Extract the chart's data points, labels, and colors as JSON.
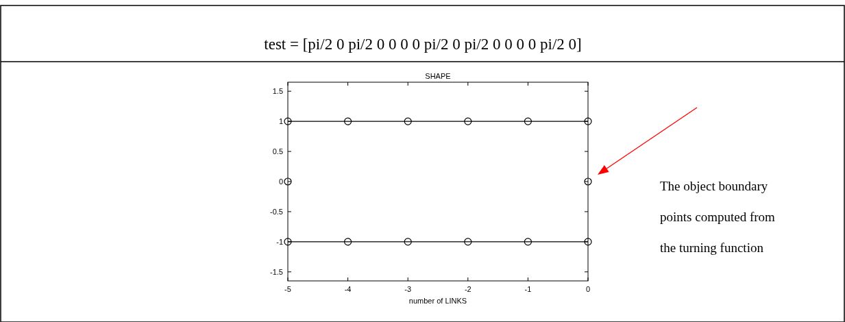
{
  "chart_data": {
    "type": "line",
    "title": "SHAPE",
    "xlabel": "number of LINKS",
    "annotations": [
      "test = [pi/2 0 pi/2 0 0 0 0 pi/2 0 pi/2 0 0 0 0 pi/2 0]",
      "The object boundary",
      "points computed from",
      "the turning function"
    ],
    "xlim": [
      -5,
      0
    ],
    "xticks": [
      -5,
      -4,
      -3,
      -2,
      -1,
      0
    ],
    "ylim": [
      -1.65,
      1.65
    ],
    "yticks": [
      -1.5,
      -1,
      -0.5,
      0,
      0.5,
      1,
      1.5
    ],
    "marker": "circle",
    "grid": false,
    "series": [
      {
        "color": "#000000",
        "x": [
          -5,
          -4,
          -3,
          -2,
          -1,
          0
        ],
        "values": [
          1,
          1,
          1,
          1,
          1,
          1
        ]
      },
      {
        "color": "#000000",
        "x": [
          -5,
          -4,
          -3,
          -2,
          -1,
          0
        ],
        "values": [
          -1,
          -1,
          -1,
          -1,
          -1,
          -1
        ]
      },
      {
        "type": "scatter",
        "color": "#000000",
        "x": [
          -5,
          0
        ],
        "values": [
          0,
          0
        ]
      }
    ]
  }
}
